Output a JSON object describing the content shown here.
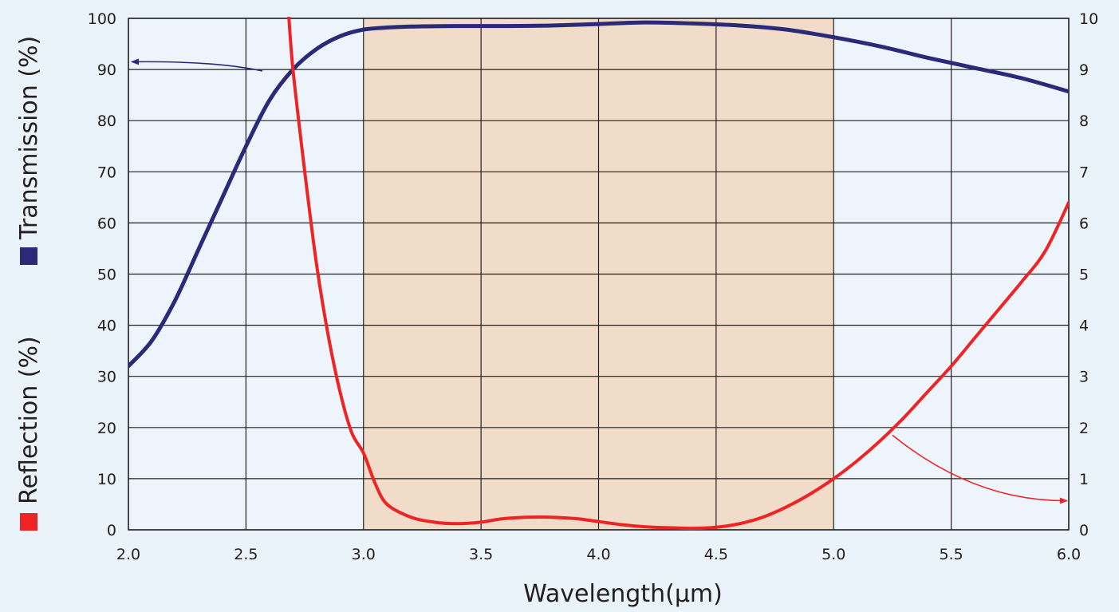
{
  "chart_data": {
    "type": "line",
    "xlabel": "Wavelength(μm)",
    "ylabel_left": {
      "series_1": "Transmission (%)",
      "series_2": "Reflection (%)"
    },
    "xlim": [
      2.0,
      6.0
    ],
    "ylim_left": [
      0,
      100
    ],
    "ylim_right": [
      0,
      10
    ],
    "x_ticks": [
      "2.0",
      "2.5",
      "3.0",
      "3.5",
      "4.0",
      "4.5",
      "5.0",
      "5.5",
      "6.0"
    ],
    "y_ticks_left": [
      "0",
      "10",
      "20",
      "30",
      "40",
      "50",
      "60",
      "70",
      "80",
      "90",
      "100"
    ],
    "y_ticks_right": [
      "0",
      "1",
      "2",
      "3",
      "4",
      "5",
      "6",
      "7",
      "8",
      "9",
      "10"
    ],
    "grid": true,
    "highlight_band": {
      "x_range": [
        3.0,
        5.0
      ],
      "color": "#f0dcc8"
    },
    "series": [
      {
        "name": "Transmission (%)",
        "axis": "left",
        "color": "#2b2a78",
        "x": [
          2.0,
          2.1,
          2.2,
          2.3,
          2.4,
          2.5,
          2.6,
          2.7,
          2.8,
          2.9,
          3.0,
          3.1,
          3.2,
          3.4,
          3.6,
          3.8,
          4.0,
          4.2,
          4.4,
          4.6,
          4.8,
          5.0,
          5.2,
          5.4,
          5.6,
          5.8,
          6.0
        ],
        "y": [
          32,
          37,
          45,
          55,
          65,
          75,
          84,
          90,
          94,
          96.5,
          97.8,
          98.2,
          98.4,
          98.5,
          98.5,
          98.6,
          98.9,
          99.2,
          99.0,
          98.6,
          97.8,
          96.3,
          94.5,
          92.3,
          90.3,
          88.3,
          85.7
        ]
      },
      {
        "name": "Reflection (%)",
        "axis": "right",
        "color": "#ee2324",
        "x": [
          2.68,
          2.7,
          2.75,
          2.8,
          2.85,
          2.9,
          2.95,
          3.0,
          3.05,
          3.1,
          3.2,
          3.3,
          3.4,
          3.5,
          3.6,
          3.75,
          3.9,
          4.0,
          4.1,
          4.2,
          4.3,
          4.4,
          4.5,
          4.6,
          4.7,
          4.8,
          4.9,
          5.0,
          5.1,
          5.2,
          5.3,
          5.4,
          5.5,
          5.6,
          5.7,
          5.8,
          5.9,
          6.0
        ],
        "y": [
          10.2,
          9.0,
          7.0,
          5.2,
          3.8,
          2.7,
          1.9,
          1.5,
          0.9,
          0.5,
          0.25,
          0.15,
          0.12,
          0.15,
          0.22,
          0.25,
          0.22,
          0.16,
          0.1,
          0.06,
          0.04,
          0.03,
          0.05,
          0.12,
          0.25,
          0.45,
          0.7,
          1.0,
          1.35,
          1.75,
          2.2,
          2.7,
          3.2,
          3.75,
          4.3,
          4.85,
          5.45,
          6.4
        ]
      }
    ]
  },
  "colors": {
    "background": "#eaf2fa",
    "plot_background": "#eef4fb",
    "grid": "#231f20",
    "transmission": "#2b2a78",
    "reflection": "#ee2324"
  }
}
